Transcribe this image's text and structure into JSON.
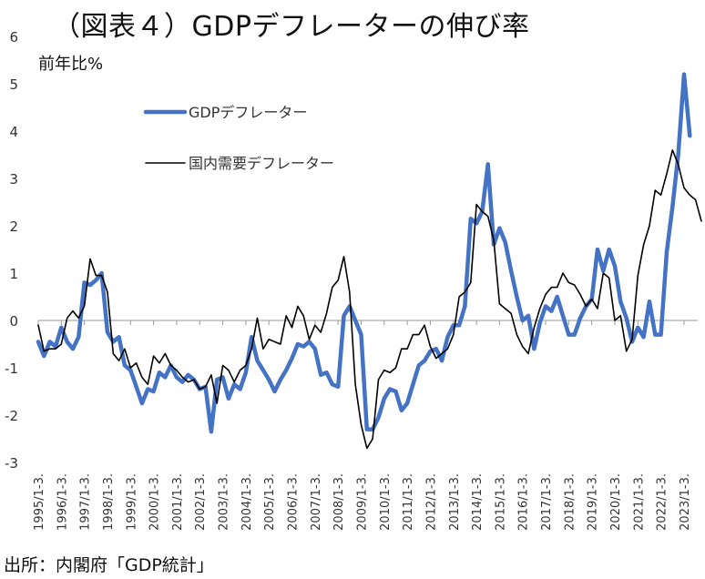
{
  "chart_data": {
    "type": "line",
    "title": "（図表４）GDPデフレーターの伸び率",
    "ylabel": "前年比%",
    "source": "出所：内閣府「GDP統計」",
    "ylim": [
      -3,
      6
    ],
    "yticks": [
      6,
      5,
      4,
      3,
      2,
      1,
      0,
      -1,
      -2,
      -3
    ],
    "xticks": [
      "1995/1-3.",
      "1996/1-3.",
      "1997/1-3.",
      "1998/1-3.",
      "1999/1-3.",
      "2000/1-3.",
      "2001/1-3.",
      "2002/1-3.",
      "2003/1-3.",
      "2004/1-3.",
      "2005/1-3.",
      "2006/1-3.",
      "2007/1-3.",
      "2008/1-3.",
      "2009/1-3.",
      "2010/1-3.",
      "2011/1-3.",
      "2012/1-3.",
      "2013/1-3.",
      "2014/1-3.",
      "2015/1-3.",
      "2016/1-3.",
      "2017/1-3.",
      "2018/1-3.",
      "2019/1-3.",
      "2020/1-3.",
      "2021/1-3.",
      "2022/1-3.",
      "2023/1-3."
    ],
    "x_start_year": 1995,
    "period": "quarterly",
    "series": [
      {
        "name": "GDPデフレーター",
        "color": "#4472C4",
        "values": [
          -0.45,
          -0.75,
          -0.45,
          -0.55,
          -0.15,
          -0.45,
          -0.6,
          -0.35,
          0.8,
          0.75,
          0.85,
          1.0,
          -0.25,
          -0.45,
          -0.35,
          -0.95,
          -1.05,
          -1.4,
          -1.75,
          -1.45,
          -1.5,
          -1.1,
          -1.2,
          -0.95,
          -1.2,
          -1.3,
          -1.15,
          -1.25,
          -1.45,
          -1.4,
          -2.35,
          -1.25,
          -1.2,
          -1.65,
          -1.35,
          -1.45,
          -1.1,
          -0.35,
          -0.85,
          -1.05,
          -1.25,
          -1.5,
          -1.25,
          -1.05,
          -0.8,
          -0.5,
          -0.55,
          -0.45,
          -0.6,
          -1.15,
          -1.1,
          -1.35,
          -1.4,
          0.1,
          0.3,
          0.0,
          -0.3,
          -2.3,
          -2.3,
          -2.05,
          -1.65,
          -1.45,
          -1.5,
          -1.9,
          -1.75,
          -1.35,
          -0.95,
          -0.85,
          -0.65,
          -0.6,
          -0.85,
          -0.35,
          -0.1,
          -0.1,
          0.3,
          2.15,
          2.05,
          2.3,
          3.3,
          1.6,
          1.95,
          1.65,
          1.05,
          0.5,
          0.0,
          0.1,
          -0.6,
          -0.05,
          0.3,
          0.2,
          0.5,
          0.1,
          -0.3,
          -0.3,
          0.05,
          0.3,
          0.45,
          1.5,
          1.05,
          1.5,
          1.15,
          0.4,
          0.05,
          -0.45,
          -0.15,
          -0.35,
          0.4,
          -0.3,
          -0.3,
          1.45,
          2.4,
          3.5,
          5.2,
          3.9
        ]
      },
      {
        "name": "国内需要デフレーター",
        "color": "#000000",
        "values": [
          -0.1,
          -0.65,
          -0.6,
          -0.6,
          -0.5,
          0.05,
          0.2,
          0.05,
          0.3,
          1.3,
          0.95,
          0.95,
          0.6,
          -0.7,
          -0.85,
          -0.6,
          -1.0,
          -0.9,
          -1.2,
          -1.35,
          -0.75,
          -0.9,
          -0.7,
          -0.95,
          -1.05,
          -1.2,
          -1.3,
          -1.25,
          -1.45,
          -1.4,
          -1.15,
          -1.75,
          -0.95,
          -1.05,
          -1.3,
          -1.05,
          -0.95,
          -0.6,
          0.05,
          -0.6,
          -0.4,
          -0.45,
          -0.5,
          0.1,
          -0.15,
          0.3,
          0.1,
          -0.4,
          -0.1,
          -0.25,
          0.15,
          0.7,
          0.85,
          1.35,
          0.6,
          -1.35,
          -2.2,
          -2.7,
          -2.5,
          -1.25,
          -1.05,
          -1.1,
          -1.0,
          -0.6,
          -0.6,
          -0.3,
          -0.3,
          -0.1,
          -0.55,
          -0.8,
          -0.7,
          -0.6,
          -0.3,
          0.5,
          0.6,
          0.8,
          2.45,
          2.3,
          2.2,
          1.7,
          0.35,
          0.25,
          0.15,
          -0.3,
          -0.55,
          -0.7,
          -0.15,
          0.25,
          0.55,
          0.7,
          0.7,
          1.0,
          0.8,
          0.75,
          0.55,
          0.3,
          0.45,
          0.25,
          1.0,
          0.9,
          0.0,
          0.1,
          -0.65,
          -0.4,
          0.95,
          1.6,
          2.0,
          2.75,
          2.65,
          3.1,
          3.6,
          3.3,
          2.8,
          2.65,
          2.55,
          2.1
        ]
      }
    ]
  }
}
